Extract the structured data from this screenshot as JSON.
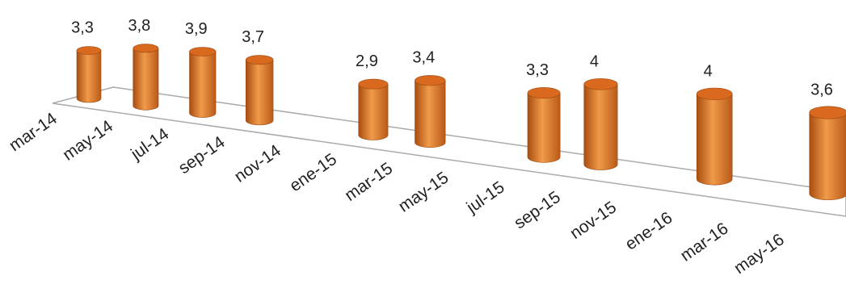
{
  "chart_data": {
    "type": "bar",
    "categories": [
      "mar-14",
      "may-14",
      "jul-14",
      "sep-14",
      "nov-14",
      "ene-15",
      "mar-15",
      "may-15",
      "jul-15",
      "sep-15",
      "nov-15",
      "ene-16",
      "mar-16",
      "may-16"
    ],
    "values": [
      3.3,
      3.8,
      3.9,
      3.7,
      null,
      2.9,
      3.4,
      null,
      3.3,
      4,
      null,
      4,
      null,
      3.6
    ],
    "value_labels": [
      "3,3",
      "3,8",
      "3,9",
      "3,7",
      null,
      "2,9",
      "3,4",
      null,
      "3,3",
      "4",
      null,
      "4",
      null,
      "3,6"
    ],
    "color": "#e07b2a"
  }
}
